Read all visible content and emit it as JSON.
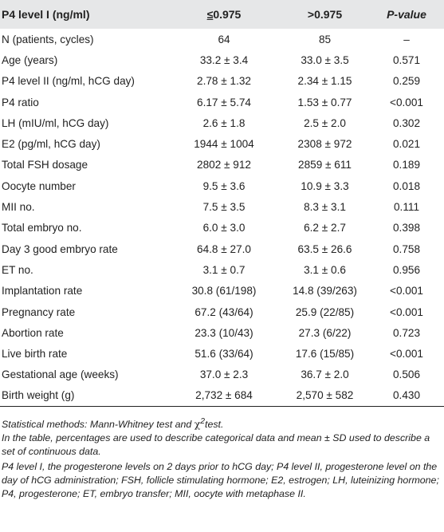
{
  "table": {
    "headers": {
      "col0": "P4 level I (ng/ml)",
      "col1_sym": "≤",
      "col1_val": "0.975",
      "col2": ">0.975",
      "col3": "P-value"
    },
    "rows": [
      {
        "label": "N (patients, cycles)",
        "a": "64",
        "b": "85",
        "p": "–"
      },
      {
        "label": "Age (years)",
        "a": "33.2 ± 3.4",
        "b": "33.0 ± 3.5",
        "p": "0.571"
      },
      {
        "label": "P4 level II (ng/ml, hCG day)",
        "a": "2.78 ± 1.32",
        "b": "2.34 ± 1.15",
        "p": "0.259"
      },
      {
        "label": "P4 ratio",
        "a": "6.17 ± 5.74",
        "b": "1.53 ± 0.77",
        "p": "<0.001"
      },
      {
        "label": "LH (mIU/ml, hCG day)",
        "a": "2.6 ± 1.8",
        "b": "2.5 ± 2.0",
        "p": "0.302"
      },
      {
        "label": "E2 (pg/ml, hCG day)",
        "a": "1944 ± 1004",
        "b": "2308 ± 972",
        "p": "0.021"
      },
      {
        "label": "Total FSH dosage",
        "a": "2802 ± 912",
        "b": "2859 ± 611",
        "p": "0.189"
      },
      {
        "label": "Oocyte number",
        "a": "9.5 ± 3.6",
        "b": "10.9 ± 3.3",
        "p": "0.018"
      },
      {
        "label": "MII no.",
        "a": "7.5 ± 3.5",
        "b": "8.3 ± 3.1",
        "p": "0.111"
      },
      {
        "label": "Total embryo no.",
        "a": "6.0 ± 3.0",
        "b": "6.2 ± 2.7",
        "p": "0.398"
      },
      {
        "label": "Day 3 good embryo rate",
        "a": "64.8 ± 27.0",
        "b": "63.5 ± 26.6",
        "p": "0.758"
      },
      {
        "label": "ET no.",
        "a": "3.1 ± 0.7",
        "b": "3.1 ± 0.6",
        "p": "0.956"
      },
      {
        "label": "Implantation rate",
        "a": "30.8 (61/198)",
        "b": "14.8 (39/263)",
        "p": "<0.001"
      },
      {
        "label": "Pregnancy rate",
        "a": "67.2 (43/64)",
        "b": "25.9 (22/85)",
        "p": "<0.001"
      },
      {
        "label": "Abortion rate",
        "a": "23.3 (10/43)",
        "b": "27.3 (6/22)",
        "p": "0.723"
      },
      {
        "label": "Live birth rate",
        "a": "51.6 (33/64)",
        "b": "17.6 (15/85)",
        "p": "<0.001"
      },
      {
        "label": "Gestational age (weeks)",
        "a": "37.0 ± 2.3",
        "b": "36.7 ± 2.0",
        "p": "0.506"
      },
      {
        "label": "Birth weight (g)",
        "a": "2,732 ± 684",
        "b": "2,570 ± 582",
        "p": "0.430"
      }
    ]
  },
  "notes": {
    "methods_prefix": "Statistical methods: Mann-Whitney test and ",
    "chi": "χ",
    "chi_sup": "2",
    "methods_suffix": "test.",
    "percentages": "In the table, percentages are used to describe categorical data and mean ± SD used to describe a set of continuous data.",
    "abbreviations": "P4 level I, the progesterone levels on 2 days prior to hCG day; P4 level II, progesterone level on the day of hCG administration; FSH, follicle stimulating hormone; E2, estrogen; LH, luteinizing hormone; P4, progesterone; ET, embryo transfer; MII, oocyte with metaphase II."
  }
}
